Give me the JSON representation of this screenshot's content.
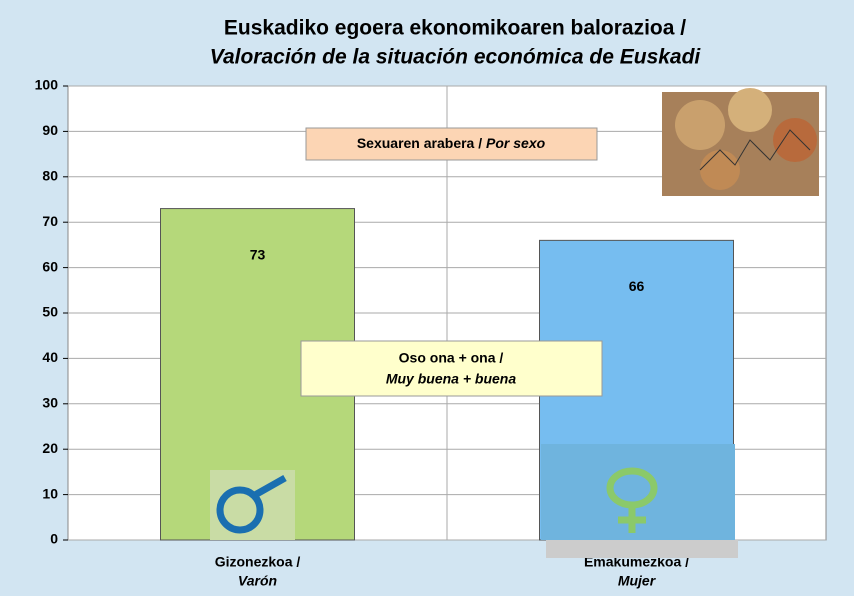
{
  "chart_data": {
    "type": "bar",
    "title": [
      "Euskadiko egoera ekonomikoaren balorazioa /",
      "Valoración de la situación económica de Euskadi"
    ],
    "annotation": {
      "text": "Sexuaren arabera /",
      "italic_text": "Por sexo"
    },
    "categories": [
      [
        "Gizonezkoa /",
        "Varón"
      ],
      [
        "Emakumezkoa /",
        "Mujer"
      ]
    ],
    "series": [
      {
        "name": [
          "Oso ona + ona /",
          "Muy buena + buena"
        ],
        "colors": [
          "#b5d87a",
          "#76bdf0"
        ],
        "values": [
          73,
          66
        ]
      }
    ],
    "ylim": [
      0,
      100
    ],
    "yticks": [
      0,
      10,
      20,
      30,
      40,
      50,
      60,
      70,
      80,
      90,
      100
    ],
    "grid": true
  }
}
